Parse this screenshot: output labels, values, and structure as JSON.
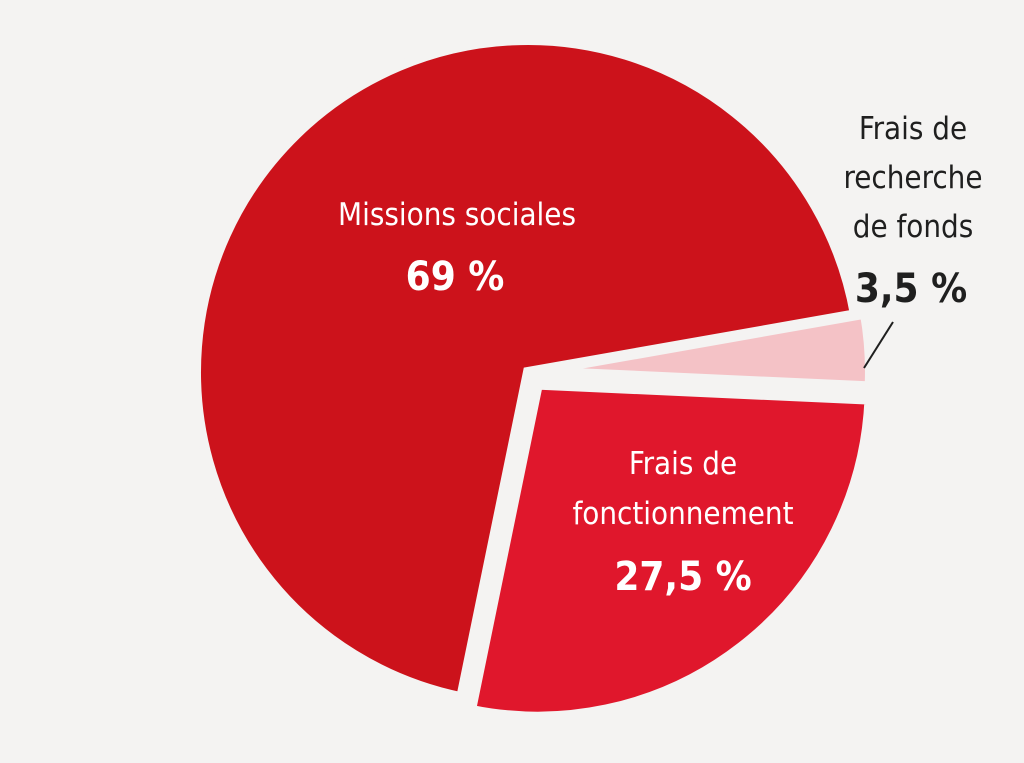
{
  "chart_data": {
    "type": "pie",
    "title": "",
    "slices": [
      {
        "label_lines": [
          "Missions sociales"
        ],
        "value_label": "69 %",
        "value": 69,
        "color": "#cc121b"
      },
      {
        "label_lines": [
          "Frais de",
          "fonctionnement"
        ],
        "value_label": "27,5 %",
        "value": 27.5,
        "color": "#e0172c"
      },
      {
        "label_lines": [
          "Frais de",
          "recherche",
          "de fonds"
        ],
        "value_label": "3,5 %",
        "value": 3.5,
        "color": "#f4c2c6"
      }
    ],
    "background": "#f4f3f2",
    "label_text_color_inside": "#ffffff",
    "label_text_color_outside": "#1f1f1f",
    "separator_color": "#f4f3f2"
  }
}
